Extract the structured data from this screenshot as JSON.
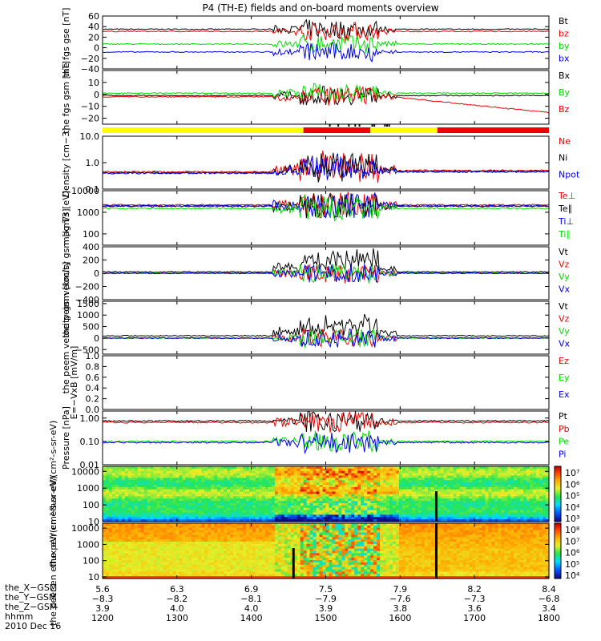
{
  "title": "P4 (TH-E) fields and on-board moments overview",
  "date_label": "2010 Dec 16",
  "colors": {
    "black": "#000000",
    "red": "#ee0000",
    "green": "#00dd00",
    "blue": "#0000ee",
    "yellow": "#ffff00"
  },
  "chart_data": [
    {
      "type": "line",
      "panel": "fgs-gse",
      "ylabel": "the fgs gse [nT]",
      "ylim": [
        -40,
        60
      ],
      "yticks": [
        "60",
        "40",
        "20",
        "0",
        "−20",
        "−40"
      ],
      "series": [
        {
          "name": "Bt",
          "color": "black",
          "baseline": 35
        },
        {
          "name": "bz",
          "color": "red",
          "baseline": 31
        },
        {
          "name": "by",
          "color": "green",
          "baseline": 7
        },
        {
          "name": "bx",
          "color": "blue",
          "baseline": -8
        }
      ]
    },
    {
      "type": "line",
      "panel": "fgs-gsm",
      "ylabel": "the fgs gsm [nT]",
      "ylim": [
        -25,
        20
      ],
      "yticks": [
        "10",
        "0",
        "−10",
        "−20"
      ],
      "series": [
        {
          "name": "Bx",
          "color": "black",
          "baseline": -1
        },
        {
          "name": "By",
          "color": "green",
          "baseline": 1
        },
        {
          "name": "Bz",
          "color": "red",
          "baseline": -2
        }
      ]
    },
    {
      "type": "line",
      "panel": "density",
      "ylabel": "Density [cm−3]",
      "scale": "log",
      "ylim": [
        0.1,
        10
      ],
      "yticks": [
        "10.0",
        "1.0",
        "0.1"
      ],
      "series": [
        {
          "name": "Ne",
          "color": "red",
          "baseline": 0.45
        },
        {
          "name": "Ni",
          "color": "black",
          "baseline": 0.42
        },
        {
          "name": "Npot",
          "color": "blue",
          "baseline": 0.4
        }
      ]
    },
    {
      "type": "line",
      "panel": "temperature",
      "ylabel": "mag T3 [eV]",
      "scale": "log",
      "ylim": [
        30,
        10000
      ],
      "yticks": [
        "10000",
        "1000",
        "100"
      ],
      "series": [
        {
          "name": "Te⊥",
          "color": "red",
          "baseline": 2200
        },
        {
          "name": "Te∥",
          "color": "black",
          "baseline": 1900
        },
        {
          "name": "Ti⊥",
          "color": "blue",
          "baseline": 2000
        },
        {
          "name": "Ti∥",
          "color": "green",
          "baseline": 1500
        }
      ]
    },
    {
      "type": "line",
      "panel": "peim-velocity",
      "ylabel": "the peim velocity gsm [km/s]",
      "ylim": [
        -400,
        400
      ],
      "yticks": [
        "400",
        "200",
        "0",
        "−200",
        "−400"
      ],
      "series": [
        {
          "name": "Vt",
          "color": "black",
          "baseline": 20
        },
        {
          "name": "Vz",
          "color": "red",
          "baseline": 0
        },
        {
          "name": "Vy",
          "color": "green",
          "baseline": 0
        },
        {
          "name": "Vx",
          "color": "blue",
          "baseline": 0
        }
      ]
    },
    {
      "type": "line",
      "panel": "peem-velocity",
      "ylabel": "the peem velocity gsm [km/s]",
      "ylim": [
        -700,
        1600
      ],
      "yticks": [
        "1500",
        "1000",
        "500",
        "0",
        "−500"
      ],
      "series": [
        {
          "name": "Vt",
          "color": "black",
          "baseline": 100
        },
        {
          "name": "Vz",
          "color": "red",
          "baseline": 0
        },
        {
          "name": "Vy",
          "color": "green",
          "baseline": 0
        },
        {
          "name": "Vx",
          "color": "blue",
          "baseline": 0
        }
      ]
    },
    {
      "type": "line",
      "panel": "efield",
      "ylabel": "E=−VxB [mV/m]",
      "ylim": [
        0,
        1
      ],
      "yticks": [
        "1.0",
        "0.8",
        "0.6",
        "0.4",
        "0.2",
        "0.0"
      ],
      "series": [
        {
          "name": "Ez",
          "color": "red"
        },
        {
          "name": "Ey",
          "color": "green"
        },
        {
          "name": "Ex",
          "color": "blue"
        }
      ]
    },
    {
      "type": "line",
      "panel": "pressure",
      "ylabel": "Pressure [nPa]",
      "scale": "log",
      "ylim": [
        0.01,
        2
      ],
      "yticks": [
        "1.00",
        "0.10",
        "0.01"
      ],
      "series": [
        {
          "name": "Pt",
          "color": "black",
          "baseline": 0.75
        },
        {
          "name": "Pb",
          "color": "red",
          "baseline": 0.65
        },
        {
          "name": "Pe",
          "color": "green",
          "baseline": 0.1
        },
        {
          "name": "Pi",
          "color": "blue",
          "baseline": 0.09
        }
      ]
    },
    {
      "type": "heatmap",
      "panel": "peir-eflux",
      "ylabel": "the peir en eflux eV/(cm²-s-sr-eV)",
      "scale": "log",
      "ylim": [
        10,
        20000
      ],
      "yticks": [
        "10000",
        "1000",
        "100",
        "10"
      ],
      "colorbar_ticks": [
        "10⁷",
        "10⁶",
        "10⁵",
        "10⁴",
        "10³"
      ]
    },
    {
      "type": "heatmap",
      "panel": "peer-eflux",
      "ylabel": "the peer en eflux eV/(cm²-s-sr-eV)",
      "scale": "log",
      "ylim": [
        8,
        20000
      ],
      "yticks": [
        "10000",
        "1000",
        "100",
        "10"
      ],
      "colorbar_ticks": [
        "10⁸",
        "10⁷",
        "10⁶",
        "10⁵",
        "10⁴"
      ]
    }
  ],
  "x_axis": {
    "rows": [
      {
        "label": "the_X−GSM",
        "values": [
          "5.6",
          "6.3",
          "6.9",
          "7.5",
          "7.9",
          "8.2",
          "8.4"
        ]
      },
      {
        "label": "the_Y−GSM",
        "values": [
          "−8.3",
          "−8.2",
          "−8.1",
          "−7.9",
          "−7.6",
          "−7.3",
          "−6.8"
        ]
      },
      {
        "label": "the_Z−GSM",
        "values": [
          "3.9",
          "4.0",
          "4.0",
          "3.9",
          "3.8",
          "3.6",
          "3.4"
        ]
      },
      {
        "label": "hhmm",
        "values": [
          "1200",
          "1300",
          "1400",
          "1500",
          "1600",
          "1700",
          "1800"
        ]
      }
    ]
  },
  "mode_bar": {
    "segments": [
      {
        "color": "yellow",
        "from": 1200,
        "to": 1442
      },
      {
        "color": "red",
        "from": 1442,
        "to": 1536
      },
      {
        "color": "yellow",
        "from": 1536,
        "to": 1630
      },
      {
        "color": "red",
        "from": 1630,
        "to": 1800
      }
    ]
  }
}
